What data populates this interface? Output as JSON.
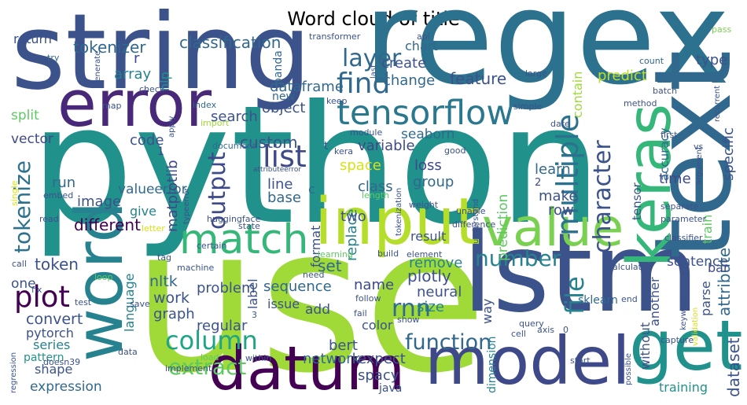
{
  "chart_data": {
    "type": "wordcloud",
    "title": "Word cloud of title",
    "words": [
      "python",
      "use",
      "regex",
      "lstm",
      "string",
      "model",
      "datum",
      "text",
      "keras",
      "word",
      "error",
      "get",
      "input",
      "value",
      "match",
      "tensorflow",
      "find",
      "layer",
      "list",
      "output",
      "multiple",
      "character",
      "column",
      "extract",
      "plot",
      "tokenize",
      "number",
      "file",
      "function",
      "rnn",
      "dataset",
      "attribute",
      "classification",
      "tokenizer",
      "return",
      "r",
      "array",
      "nlp",
      "vector",
      "split",
      "code",
      "1",
      "run",
      "image",
      "valueerror",
      "give",
      "matplotlib",
      "different",
      "token",
      "one",
      "nltk",
      "work",
      "graph",
      "language",
      "convert",
      "pytorch",
      "series",
      "pattern",
      "shape",
      "expression",
      "search",
      "object",
      "custom",
      "new",
      "dataframe",
      "panda",
      "seaborn",
      "variable",
      "create",
      "change",
      "chart",
      "feature",
      "predict",
      "type",
      "contain",
      "space",
      "loss",
      "group",
      "class",
      "replace",
      "prediction",
      "learn",
      "2",
      "make",
      "row",
      "time",
      "accuracy",
      "tensor",
      "specific",
      "train",
      "bar",
      "sentence",
      "another",
      "parse",
      "without",
      "training",
      "two",
      "name",
      "result",
      "remove",
      "plotly",
      "neural",
      "size",
      "set",
      "sequence",
      "issue",
      "add",
      "problem",
      "label",
      "regular",
      "format",
      "line",
      "base",
      "c",
      "bert",
      "network",
      "expect",
      "spacy",
      "java",
      "color",
      "way",
      "dimension",
      "sklearn",
      "transformer",
      "api",
      "pass",
      "count",
      "last",
      "large",
      "try",
      "generate",
      "check",
      "map",
      "apply",
      "index",
      "import",
      "simple",
      "date",
      "method",
      "batch",
      "recurrent",
      "first",
      "vs",
      "argument",
      "keep",
      "module",
      "document",
      "kera",
      "good",
      "attributeerror",
      "t",
      "single",
      "embed",
      "read",
      "letter",
      "typeerror",
      "huggingface",
      "length",
      "tokenization",
      "weight",
      "understand",
      "unable",
      "difference",
      "parameter",
      "classifier",
      "separate",
      "state",
      "certain",
      "tag",
      "machine",
      "fix",
      "loop",
      "call",
      "test",
      "save",
      "3",
      "load",
      "within",
      "implement",
      "data",
      "doesn39",
      "regression",
      "element",
      "build",
      "learning",
      "need",
      "follow",
      "fail",
      "show",
      "start",
      "cell",
      "query",
      "axis",
      "0",
      "end",
      "calculate",
      "keyword",
      "validation",
      "capture",
      "possible"
    ],
    "colors": [
      "#21918c",
      "#a0da39",
      "#2c728e",
      "#3b528b",
      "#3b528b",
      "#3e4989",
      "#440154",
      "#31688e",
      "#35b779",
      "#26828e",
      "#482878",
      "#21918c",
      "#b5de2b",
      "#7ad151",
      "#35b779",
      "#2a788e",
      "#31688e",
      "#31688e",
      "#3e4989",
      "#3e4989",
      "#2c728e",
      "#3b528b",
      "#20a486",
      "#5ec962",
      "#440154",
      "#2c728e",
      "#26828e",
      "#26828e",
      "#31688e",
      "#31688e",
      "#3b528b",
      "#31688e",
      "#31688e",
      "#31688e",
      "#3b528b",
      "#3e4989",
      "#26828e",
      "#21918c",
      "#3e4989",
      "#5ec962",
      "#3b528b",
      "#3e4989",
      "#31688e",
      "#3b528b",
      "#31688e",
      "#26828e",
      "#3e4989",
      "#440154",
      "#3b528b",
      "#3b528b",
      "#31688e",
      "#3b528b",
      "#3b528b",
      "#26828e",
      "#3b528b",
      "#3b528b",
      "#26828e",
      "#21918c",
      "#3b528b",
      "#31688e",
      "#3b528b",
      "#3b528b",
      "#3b528b",
      "#31688e",
      "#31688e",
      "#31688e",
      "#31688e",
      "#3e4989",
      "#3b528b",
      "#31688e",
      "#31688e",
      "#3b528b",
      "#bddf26",
      "#3b528b",
      "#a0da39",
      "#d8e219",
      "#3e4989",
      "#31688e",
      "#31688e",
      "#26828e",
      "#5ec962",
      "#31688e",
      "#3e4989",
      "#3b528b",
      "#3e4989",
      "#3e4989",
      "#31688e",
      "#3b528b",
      "#3b528b",
      "#5ec962",
      "#3e4989",
      "#3b528b",
      "#3b528b",
      "#3b528b",
      "#3b528b",
      "#21918c",
      "#3b528b",
      "#3e4989",
      "#3b528b",
      "#26828e",
      "#3b528b",
      "#3b528b",
      "#26828e",
      "#31688e",
      "#31688e",
      "#3b528b",
      "#3b528b",
      "#3b528b",
      "#3b528b",
      "#3b528b",
      "#3b528b",
      "#3b528b",
      "#31688e",
      "#31688e",
      "#3b528b",
      "#31688e",
      "#3b528b",
      "#3b528b",
      "#3b528b",
      "#3b528b",
      "#3b528b",
      "#26828e",
      "#31688e",
      "#3b528b",
      "#3b528b",
      "#7ad151",
      "#31688e",
      "#3b528b",
      "#3b528b",
      "#31688e",
      "#3b528b",
      "#3b528b",
      "#3b528b",
      "#3b528b",
      "#31688e",
      "#a0da39",
      "#3b528b",
      "#3b528b",
      "#3b528b",
      "#3b528b",
      "#3b528b",
      "#3b528b",
      "#3b528b",
      "#3b528b",
      "#3b528b",
      "#3b528b",
      "#31688e",
      "#3b528b",
      "#3b528b",
      "#3b528b",
      "#3b528b",
      "#d8e219",
      "#3b528b",
      "#3b528b",
      "#d8e219",
      "#3b528b",
      "#3b528b",
      "#5ec962",
      "#3b528b",
      "#3b528b",
      "#3b528b",
      "#3b528b",
      "#3b528b",
      "#3b528b",
      "#3b528b",
      "#3b528b",
      "#3b528b",
      "#3b528b",
      "#3b528b",
      "#3b528b",
      "#3b528b",
      "#5ec962",
      "#3b528b",
      "#3b528b",
      "#3b528b",
      "#3b528b",
      "#5ec962",
      "#3b528b",
      "#3b528b",
      "#3b528b",
      "#3b528b",
      "#3b528b",
      "#3b528b",
      "#3b528b",
      "#5ec962",
      "#3b528b",
      "#3b528b",
      "#3b528b",
      "#3b528b",
      "#3b528b",
      "#3b528b",
      "#3b528b",
      "#3b528b",
      "#3b528b",
      "#3b528b",
      "#3b528b",
      "#3b528b",
      "#d8e219",
      "#3b528b",
      "#3b528b"
    ]
  }
}
